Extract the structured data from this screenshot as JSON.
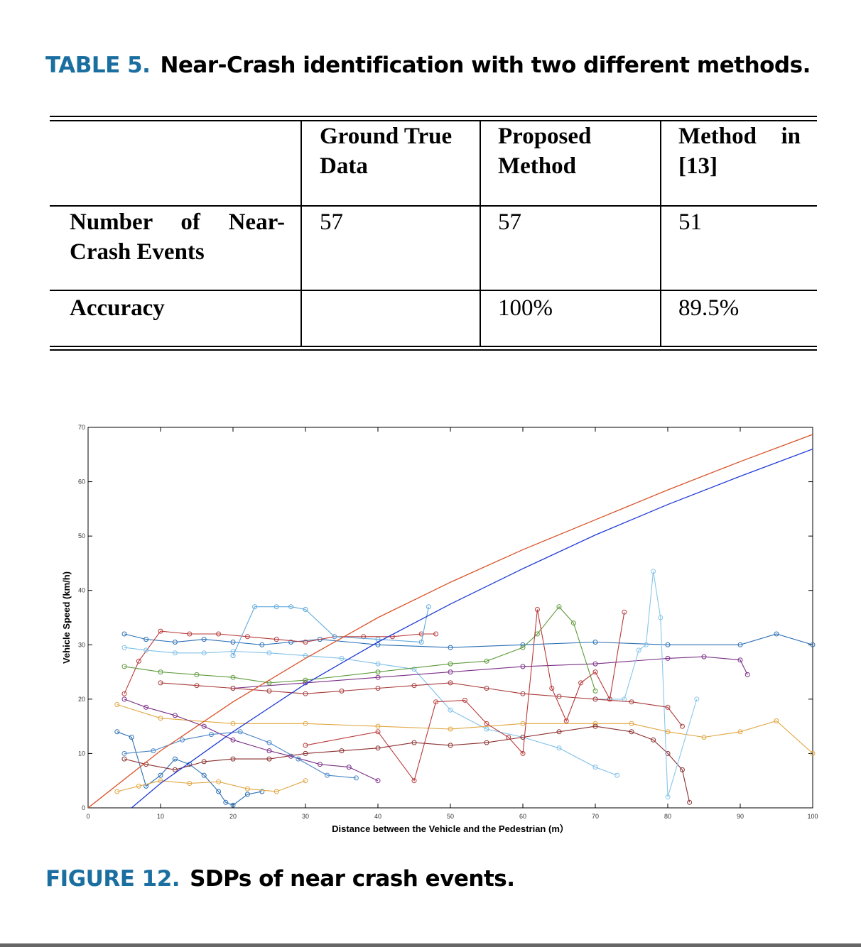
{
  "table": {
    "label": "TABLE 5.",
    "title": "Near-Crash identification with two different methods.",
    "headers": [
      "",
      "Ground True Data",
      "Proposed Method",
      "Method in [13]"
    ],
    "rows": [
      {
        "label": "Number of Near-Crash Events",
        "ground_true": "57",
        "proposed": "57",
        "method13": "51"
      },
      {
        "label": "Accuracy",
        "ground_true": "",
        "proposed": "100%",
        "method13": "89.5%"
      }
    ]
  },
  "figure": {
    "label": "FIGURE 12.",
    "title": "SDPs of near crash events."
  },
  "chart_data": {
    "type": "line",
    "xlabel": "Distance between the Vehicle and the Pedestrian (m）",
    "ylabel": "Vehicle Speed (km/h)",
    "xlim": [
      0,
      100
    ],
    "ylim": [
      0,
      70
    ],
    "x_ticks": [
      "0",
      "10",
      "20",
      "30",
      "40",
      "50",
      "60",
      "70",
      "80",
      "90",
      "100"
    ],
    "y_ticks": [
      "0",
      "10",
      "20",
      "30",
      "40",
      "50",
      "60",
      "70"
    ],
    "grid": false,
    "curves": [
      {
        "color": "#d9542a",
        "x": [
          0,
          10,
          20,
          30,
          40,
          50,
          60,
          70,
          80,
          90,
          100
        ],
        "y": [
          0,
          10.5,
          19.5,
          27.5,
          35,
          41.5,
          47.5,
          53,
          58.5,
          63.7,
          68.7
        ]
      },
      {
        "color": "#1f3ad6",
        "x": [
          6,
          10,
          20,
          30,
          40,
          50,
          60,
          70,
          80,
          90,
          100
        ],
        "y": [
          0,
          4.5,
          14,
          22.8,
          30.5,
          37.5,
          44,
          50.2,
          55.8,
          61,
          66
        ]
      }
    ],
    "series": [
      {
        "color": "#2a6fb5",
        "x": [
          5,
          8,
          12,
          16,
          20,
          24,
          28,
          32,
          40,
          50,
          60,
          70,
          80,
          90,
          95,
          100
        ],
        "y": [
          32,
          31,
          30.5,
          31,
          30.5,
          30,
          30.5,
          31,
          30,
          29.5,
          30,
          30.5,
          30,
          30,
          32,
          30
        ]
      },
      {
        "color": "#b93a3a",
        "x": [
          5,
          7,
          10,
          14,
          18,
          22,
          26,
          30,
          34,
          38,
          42,
          46,
          48
        ],
        "y": [
          21,
          27,
          32.5,
          32,
          32,
          31.5,
          31,
          30.5,
          31.5,
          31.5,
          31.5,
          32,
          32
        ]
      },
      {
        "color": "#7fc0e8",
        "x": [
          5,
          8,
          12,
          16,
          20,
          25,
          30,
          35,
          40,
          45,
          50,
          55,
          60,
          65,
          70,
          73
        ],
        "y": [
          29.5,
          29,
          28.5,
          28.5,
          28.8,
          28.5,
          28,
          27.5,
          26.5,
          25.5,
          18,
          14.5,
          13,
          11,
          7.5,
          6
        ]
      },
      {
        "color": "#7a2f86",
        "x": [
          20,
          30,
          40,
          50,
          60,
          70,
          80,
          85,
          90,
          91
        ],
        "y": [
          22,
          23,
          24,
          25,
          26,
          26.5,
          27.5,
          27.8,
          27.2,
          24.5
        ]
      },
      {
        "color": "#e0a640",
        "x": [
          4,
          10,
          20,
          30,
          40,
          50,
          60,
          70,
          75,
          80,
          85,
          90,
          95,
          100
        ],
        "y": [
          19,
          16.5,
          15.5,
          15.5,
          15,
          14.5,
          15.5,
          15.5,
          15.5,
          14,
          13,
          14,
          16,
          10
        ]
      },
      {
        "color": "#5f9a3c",
        "x": [
          5,
          10,
          15,
          20,
          25,
          30,
          40,
          50,
          55,
          60,
          62,
          65,
          67,
          70
        ],
        "y": [
          26,
          25,
          24.5,
          24,
          23,
          23.5,
          25,
          26.5,
          27,
          29.5,
          32,
          37,
          34,
          21.5
        ]
      },
      {
        "color": "#2a6fb5",
        "x": [
          4,
          6,
          8,
          10,
          12,
          14,
          16,
          18,
          19,
          20,
          22,
          24
        ],
        "y": [
          14,
          13,
          4,
          6,
          9,
          8,
          6,
          3,
          1,
          0.5,
          2.5,
          3
        ]
      },
      {
        "color": "#8a2f2f",
        "x": [
          5,
          8,
          12,
          16,
          20,
          25,
          30,
          35,
          40,
          45,
          50,
          55,
          60,
          65,
          70,
          75,
          78,
          80,
          82,
          83
        ],
        "y": [
          9,
          8,
          7,
          8.5,
          9,
          9,
          10,
          10.5,
          11,
          12,
          11.5,
          12,
          13,
          14,
          15,
          14,
          12.5,
          10,
          7,
          1
        ]
      },
      {
        "color": "#5fa9dd",
        "x": [
          20,
          23,
          26,
          28,
          30,
          34,
          40,
          46,
          47
        ],
        "y": [
          28,
          37,
          37,
          37,
          36.5,
          31.5,
          31,
          30.5,
          37
        ]
      },
      {
        "color": "#88c6ea",
        "x": [
          70,
          74,
          76,
          77,
          78,
          79,
          80,
          84
        ],
        "y": [
          20,
          20,
          29,
          30,
          43.5,
          35,
          2,
          20
        ]
      },
      {
        "color": "#b93a3a",
        "x": [
          30,
          40,
          45,
          48,
          52,
          55,
          58,
          60,
          62,
          64,
          66,
          68,
          70,
          72,
          74
        ],
        "y": [
          11.5,
          14,
          5,
          19.5,
          19.8,
          15.5,
          13,
          10,
          36.5,
          22,
          16,
          23,
          25,
          20,
          36
        ]
      },
      {
        "color": "#7a2f86",
        "x": [
          5,
          8,
          12,
          16,
          20,
          25,
          28,
          32,
          36,
          40
        ],
        "y": [
          20,
          18.5,
          17,
          15,
          12.5,
          10.5,
          9.5,
          8,
          7.5,
          5
        ]
      },
      {
        "color": "#4a86c8",
        "x": [
          5,
          9,
          13,
          17,
          21,
          25,
          29,
          33,
          37
        ],
        "y": [
          10,
          10.5,
          12.5,
          13.5,
          14,
          12,
          9,
          6,
          5.5
        ]
      },
      {
        "color": "#e0a640",
        "x": [
          4,
          7,
          10,
          14,
          18,
          22,
          26,
          30
        ],
        "y": [
          3,
          4,
          5,
          4.5,
          4.8,
          3.5,
          3,
          5
        ]
      },
      {
        "color": "#a83a3a",
        "x": [
          10,
          15,
          20,
          25,
          30,
          35,
          40,
          45,
          50,
          55,
          60,
          65,
          70,
          75,
          80,
          82
        ],
        "y": [
          23,
          22.5,
          22,
          21.5,
          21,
          21.5,
          22,
          22.5,
          23,
          22,
          21,
          20.5,
          20,
          19.5,
          18.5,
          15
        ]
      }
    ]
  }
}
